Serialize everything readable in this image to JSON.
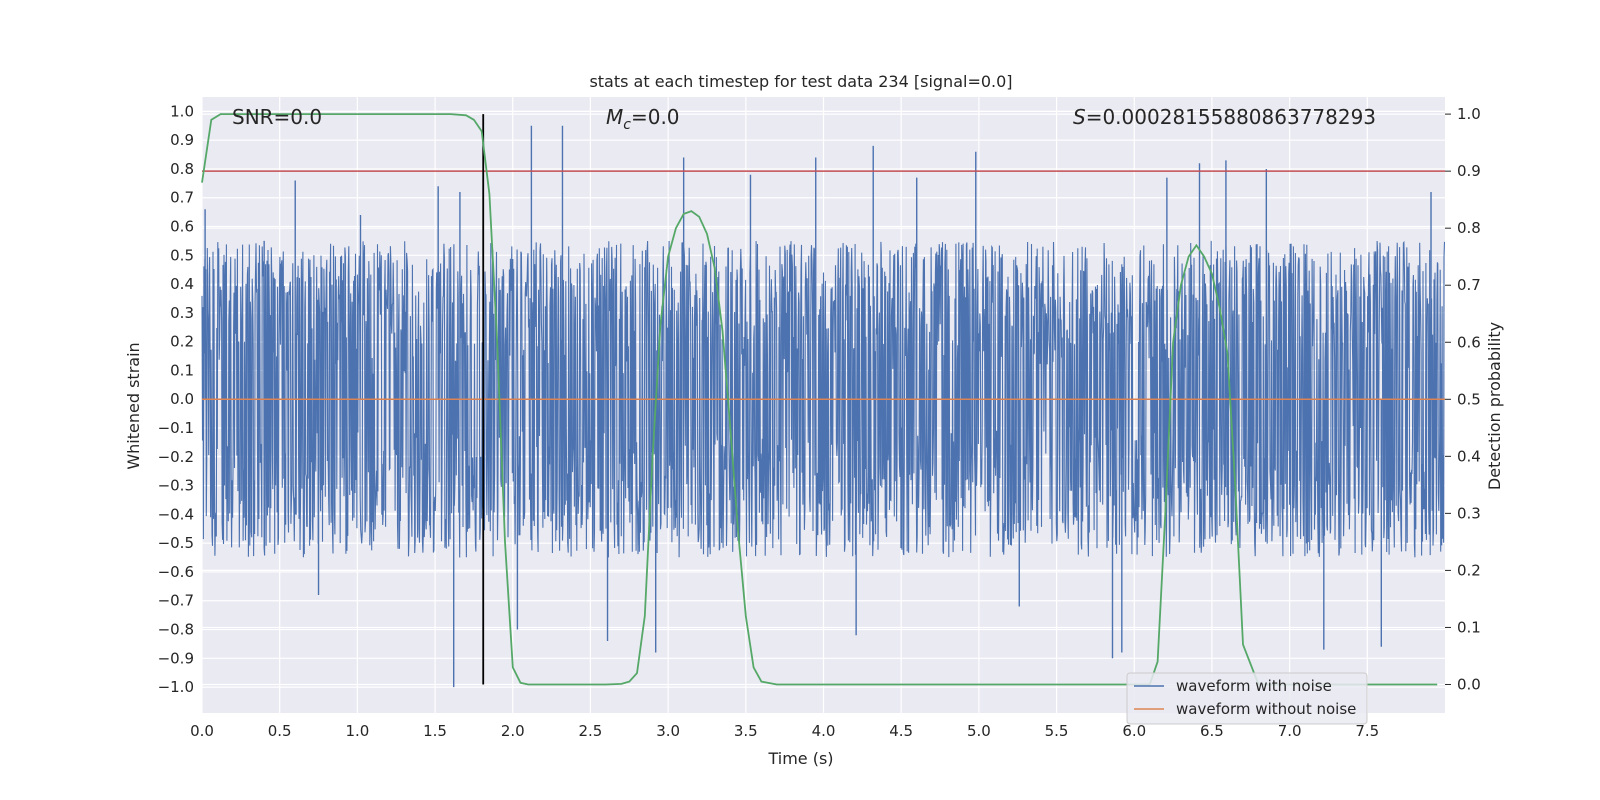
{
  "chart_data": {
    "type": "line",
    "title": "stats at each timestep for test data 234 [signal=0.0]",
    "xlabel": "Time (s)",
    "ylabel": "Whitened strain",
    "ylabel_right": "Detection probability",
    "xlim": [
      0.0,
      8.0
    ],
    "ylim": [
      -1.09,
      1.05
    ],
    "ylim_right": [
      -0.05,
      1.03
    ],
    "x_ticks": [
      0.0,
      0.5,
      1.0,
      1.5,
      2.0,
      2.5,
      3.0,
      3.5,
      4.0,
      4.5,
      5.0,
      5.5,
      6.0,
      6.5,
      7.0,
      7.5
    ],
    "x_tick_labels": [
      "0.0",
      "0.5",
      "1.0",
      "1.5",
      "2.0",
      "2.5",
      "3.0",
      "3.5",
      "4.0",
      "4.5",
      "5.0",
      "5.5",
      "6.0",
      "6.5",
      "7.0",
      "7.5"
    ],
    "y_ticks": [
      1.0,
      0.9,
      0.8,
      0.7,
      0.6,
      0.5,
      0.4,
      0.3,
      0.2,
      0.1,
      0.0,
      -0.1,
      -0.2,
      -0.3,
      -0.4,
      -0.5,
      -0.6,
      -0.7,
      -0.8,
      -0.9,
      -1.0
    ],
    "y_tick_labels": [
      "1.0",
      "0.9",
      "0.8",
      "0.7",
      "0.6",
      "0.5",
      "0.4",
      "0.3",
      "0.2",
      "0.1",
      "0.0",
      "−0.1",
      "−0.2",
      "−0.3",
      "−0.4",
      "−0.5",
      "−0.6",
      "−0.7",
      "−0.8",
      "−0.9",
      "−1.0"
    ],
    "y_right_ticks": [
      1.0,
      0.9,
      0.8,
      0.7,
      0.6,
      0.5,
      0.4,
      0.3,
      0.2,
      0.1,
      0.0
    ],
    "y_right_tick_labels": [
      "1.0",
      "0.9",
      "0.8",
      "0.7",
      "0.6",
      "0.5",
      "0.4",
      "0.3",
      "0.2",
      "0.1",
      "0.0"
    ],
    "annotations": {
      "snr": "SNR=0.0",
      "mc_symbol": "M",
      "mc_subscript": "c",
      "mc_value": "=0.0",
      "s_symbol": "S",
      "s_value": "=0.00028155880863778293"
    },
    "threshold": {
      "value": 0.9,
      "axis": "right",
      "color": "#c44e52"
    },
    "marker_time": 1.81,
    "series": [
      {
        "name": "waveform with noise",
        "axis": "left",
        "color": "#4c72b0",
        "style": "dense-noise",
        "envelope": {
          "typical_peak": 0.55,
          "max_peak": 0.95,
          "min_trough": -1.0
        },
        "spikes": [
          [
            0.02,
            0.66
          ],
          [
            0.4,
            0.55
          ],
          [
            0.6,
            0.76
          ],
          [
            0.75,
            -0.68
          ],
          [
            1.02,
            0.64
          ],
          [
            1.52,
            0.74
          ],
          [
            1.62,
            -1.0
          ],
          [
            1.66,
            0.72
          ],
          [
            2.03,
            -0.8
          ],
          [
            2.12,
            0.95
          ],
          [
            2.32,
            0.95
          ],
          [
            2.61,
            -0.84
          ],
          [
            2.92,
            -0.88
          ],
          [
            3.1,
            0.84
          ],
          [
            3.53,
            0.78
          ],
          [
            3.95,
            0.84
          ],
          [
            4.21,
            -0.82
          ],
          [
            4.32,
            0.88
          ],
          [
            4.6,
            0.77
          ],
          [
            4.98,
            0.86
          ],
          [
            5.26,
            -0.72
          ],
          [
            5.86,
            -0.9
          ],
          [
            5.92,
            -0.88
          ],
          [
            6.21,
            0.77
          ],
          [
            6.42,
            0.82
          ],
          [
            6.59,
            0.83
          ],
          [
            6.85,
            0.8
          ],
          [
            7.22,
            -0.87
          ],
          [
            7.59,
            -0.86
          ],
          [
            7.91,
            0.72
          ]
        ]
      },
      {
        "name": "waveform without noise",
        "axis": "left",
        "color": "#dd8452",
        "x": [
          0.0,
          8.0
        ],
        "values": [
          0.0,
          0.0
        ]
      },
      {
        "name": "detection probability",
        "axis": "right",
        "color": "#55a868",
        "x": [
          0.0,
          0.06,
          0.12,
          0.2,
          0.4,
          0.8,
          1.2,
          1.6,
          1.7,
          1.75,
          1.8,
          1.85,
          1.9,
          1.95,
          2.0,
          2.05,
          2.1,
          2.2,
          2.4,
          2.6,
          2.7,
          2.75,
          2.8,
          2.85,
          2.9,
          2.95,
          3.0,
          3.05,
          3.1,
          3.15,
          3.2,
          3.25,
          3.3,
          3.35,
          3.4,
          3.45,
          3.5,
          3.55,
          3.6,
          3.7,
          4.0,
          5.0,
          6.0,
          6.1,
          6.15,
          6.2,
          6.25,
          6.3,
          6.35,
          6.4,
          6.45,
          6.5,
          6.55,
          6.6,
          6.65,
          6.7,
          6.8,
          6.9,
          7.0,
          7.5,
          7.95
        ],
        "values": [
          0.88,
          0.99,
          1.0,
          1.0,
          1.0,
          1.0,
          1.0,
          1.0,
          0.998,
          0.99,
          0.97,
          0.86,
          0.6,
          0.25,
          0.03,
          0.003,
          0.0,
          0.0,
          0.0,
          0.0,
          0.001,
          0.005,
          0.02,
          0.12,
          0.4,
          0.63,
          0.75,
          0.8,
          0.825,
          0.83,
          0.82,
          0.79,
          0.73,
          0.62,
          0.45,
          0.27,
          0.12,
          0.03,
          0.005,
          0.0,
          0.0,
          0.0,
          0.0,
          0.0,
          0.04,
          0.3,
          0.6,
          0.7,
          0.75,
          0.77,
          0.75,
          0.72,
          0.66,
          0.58,
          0.35,
          0.07,
          0.0,
          0.0,
          0.0,
          0.0,
          0.0
        ]
      }
    ],
    "legend": {
      "position": "lower-right",
      "entries": [
        {
          "label": "waveform with noise",
          "color": "#4c72b0"
        },
        {
          "label": "waveform without noise",
          "color": "#dd8452"
        }
      ]
    }
  }
}
